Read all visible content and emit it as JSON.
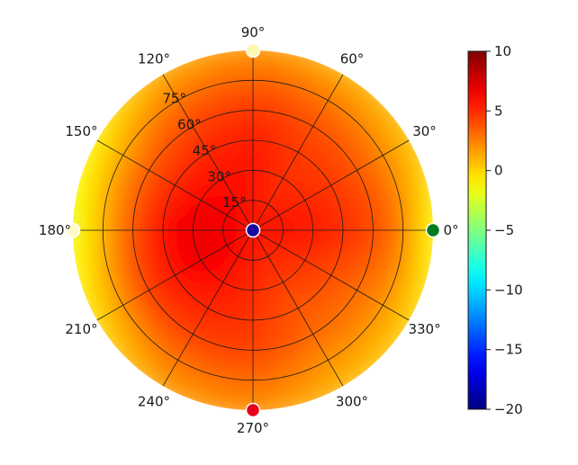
{
  "chart_data": {
    "type": "heatmap",
    "subtype": "polar",
    "title": "",
    "angle_unit": "degrees",
    "angle_ticks": [
      0,
      30,
      60,
      90,
      120,
      150,
      180,
      210,
      240,
      270,
      300,
      330
    ],
    "angle_tick_labels": [
      "0°",
      "30°",
      "60°",
      "90°",
      "120°",
      "150°",
      "180°",
      "210°",
      "240°",
      "270°",
      "300°",
      "330°"
    ],
    "radial_ticks": [
      15,
      30,
      45,
      60,
      75
    ],
    "radial_tick_labels": [
      "15°",
      "30°",
      "45°",
      "60°",
      "75°"
    ],
    "radial_range": [
      0,
      90
    ],
    "radial_label_angle_deg": 120,
    "grid": true,
    "colorbar": {
      "colormap": "jet",
      "range": [
        -20,
        10
      ],
      "ticks": [
        10,
        5,
        0,
        -5,
        -10,
        -15,
        -20
      ],
      "tick_labels": [
        "10",
        "5",
        "0",
        "−5",
        "−10",
        "−15",
        "−20"
      ],
      "placement": "right"
    },
    "field_samples": {
      "description_note": "",
      "r_deg": [
        0,
        15,
        30,
        45,
        60,
        75,
        90
      ],
      "theta_deg": [
        0,
        30,
        60,
        90,
        120,
        150,
        180,
        210,
        240,
        270,
        300,
        330
      ],
      "values": [
        [
          5.8,
          6.0,
          5.6,
          5.0,
          4.2,
          2.5,
          -1.5
        ],
        [
          5.8,
          5.6,
          5.2,
          4.6,
          3.8,
          2.2,
          0.5
        ],
        [
          5.8,
          5.0,
          4.8,
          4.5,
          4.0,
          2.8,
          1.0
        ],
        [
          5.8,
          5.6,
          5.8,
          5.5,
          4.8,
          3.5,
          1.8
        ],
        [
          5.8,
          6.2,
          5.8,
          5.2,
          4.4,
          3.0,
          1.2
        ],
        [
          5.8,
          6.5,
          6.2,
          5.2,
          3.6,
          1.5,
          -1.0
        ],
        [
          5.8,
          6.8,
          7.0,
          6.0,
          4.0,
          1.0,
          -2.0
        ],
        [
          5.8,
          6.5,
          6.8,
          5.8,
          4.6,
          2.0,
          -0.5
        ],
        [
          5.8,
          6.0,
          5.8,
          5.2,
          4.5,
          3.0,
          1.5
        ],
        [
          5.8,
          5.5,
          5.0,
          4.8,
          4.4,
          3.2,
          2.0
        ],
        [
          5.8,
          5.0,
          4.5,
          3.6,
          3.2,
          2.0,
          0.8
        ],
        [
          5.8,
          5.3,
          4.8,
          4.0,
          3.0,
          2.0,
          0.0
        ]
      ]
    },
    "markers": [
      {
        "name": "center",
        "r_deg": 0,
        "theta_deg": 0,
        "color": "#1a0aa0"
      },
      {
        "name": "east",
        "r_deg": 90,
        "theta_deg": 0,
        "color": "#007a1f"
      },
      {
        "name": "north",
        "r_deg": 90,
        "theta_deg": 90,
        "color": "#fff6b0"
      },
      {
        "name": "west",
        "r_deg": 90,
        "theta_deg": 180,
        "color": "#fff9c8"
      },
      {
        "name": "south",
        "r_deg": 90,
        "theta_deg": 270,
        "color": "#e8001c"
      }
    ]
  }
}
